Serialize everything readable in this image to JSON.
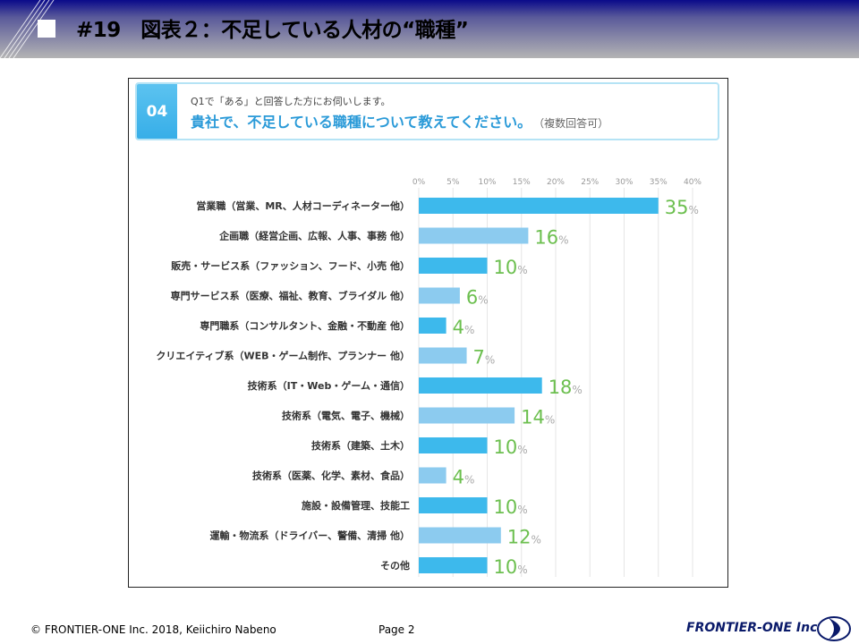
{
  "header": {
    "title": "#19　図表２：不足している人材の“職種”"
  },
  "question": {
    "number": "04",
    "sub": "Q1で「ある」と回答した方にお伺いします。",
    "main": "貴社で、不足している職種について教えてください。",
    "note": "（複数回答可）"
  },
  "chart_data": {
    "type": "bar",
    "orientation": "horizontal",
    "categories": [
      "営業職（営業、MR、人材コーディネーター他）",
      "企画職（経営企画、広報、人事、事務 他）",
      "販売・サービス系（ファッション、フード、小売 他）",
      "専門サービス系（医療、福祉、教育、ブライダル 他）",
      "専門職系（コンサルタント、金融・不動産 他）",
      "クリエイティブ系（WEB・ゲーム制作、プランナー 他）",
      "技術系（IT・Web・ゲーム・通信）",
      "技術系（電気、電子、機械）",
      "技術系（建築、土木）",
      "技術系（医薬、化学、素材、食品）",
      "施設・設備管理、技能工",
      "運輸・物流系（ドライバー、警備、清掃 他）",
      "その他"
    ],
    "values": [
      35,
      16,
      10,
      6,
      4,
      7,
      18,
      14,
      10,
      4,
      10,
      12,
      10
    ],
    "unit": "%",
    "xlim": [
      0,
      40
    ],
    "ticks": [
      "0%",
      "5%",
      "10%",
      "15%",
      "20%",
      "25%",
      "30%",
      "35%",
      "40%"
    ],
    "grid": true,
    "colors": {
      "dark": "#3db9ec",
      "light": "#8ccbef",
      "value": "#6cbf4f",
      "unit": "#aaaaaa",
      "grid": "#e6e6e6"
    }
  },
  "footer": {
    "copyright": "© FRONTIER-ONE Inc. 2018,  Keiichiro  Nabeno",
    "page": "Page 2",
    "logo": "FRONTIER-ONE Inc."
  }
}
